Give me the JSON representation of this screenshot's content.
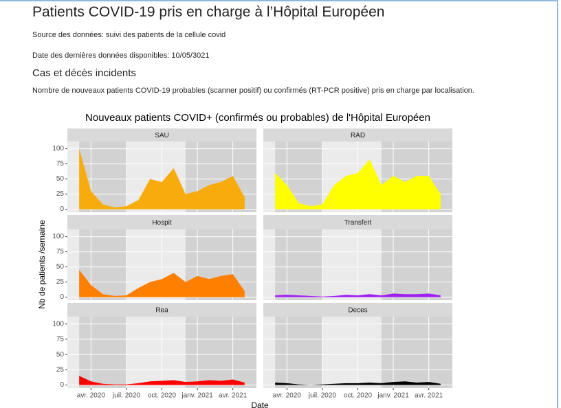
{
  "header": {
    "title": "Patients COVID-19 pris en charge à l’Hôpital Européen",
    "source": "Source des données: suivi des patients de la cellule covid",
    "date": "Date des dernières données disponibles: 10/05/3021",
    "section": "Cas et décès incidents",
    "description": "Nombre de nouveaux patients COVID-19 probables (scanner positif) ou confirmés (RT-PCR positive) pris en charge par localisation."
  },
  "chart_data": {
    "type": "area",
    "title": "Nouveaux patients COVID+ (confirmés ou probables) de l'Hôpital Européen",
    "xlabel": "Date",
    "ylabel": "Nb de patients /semaine",
    "x": [
      "2020-03",
      "2020-04",
      "2020-05",
      "2020-06",
      "2020-07",
      "2020-08",
      "2020-09",
      "2020-10",
      "2020-11",
      "2020-12",
      "2021-01",
      "2021-02",
      "2021-03",
      "2021-04",
      "2021-05"
    ],
    "xlim": [
      "2020-02",
      "2021-06"
    ],
    "xticks": [
      {
        "value": "2020-04",
        "label": "avr. 2020"
      },
      {
        "value": "2020-07",
        "label": "juil. 2020"
      },
      {
        "value": "2020-10",
        "label": "oct. 2020"
      },
      {
        "value": "2021-01",
        "label": "janv. 2021"
      },
      {
        "value": "2021-04",
        "label": "avr. 2021"
      }
    ],
    "ylim": [
      -5,
      112
    ],
    "yticks": [
      0,
      25,
      50,
      75,
      100
    ],
    "grid": true,
    "shaded_periods": [
      [
        "2020-03",
        "2020-07"
      ],
      [
        "2020-12",
        "2021-06"
      ]
    ],
    "panels": [
      {
        "name": "SAU",
        "color": "#f7ab0c",
        "values": [
          100,
          30,
          8,
          3,
          5,
          15,
          50,
          45,
          68,
          25,
          30,
          40,
          45,
          55,
          20
        ]
      },
      {
        "name": "RAD",
        "color": "#ffff00",
        "values": [
          60,
          40,
          10,
          5,
          8,
          40,
          55,
          60,
          82,
          40,
          55,
          45,
          55,
          55,
          25
        ]
      },
      {
        "name": "Hospit",
        "color": "#ff7f00",
        "values": [
          45,
          20,
          5,
          2,
          3,
          15,
          25,
          30,
          40,
          25,
          35,
          30,
          35,
          38,
          10
        ]
      },
      {
        "name": "Transfert",
        "color": "#a020f0",
        "values": [
          3,
          4,
          3,
          2,
          1,
          2,
          4,
          3,
          5,
          3,
          6,
          5,
          5,
          6,
          3
        ]
      },
      {
        "name": "Rea",
        "color": "#ff0000",
        "values": [
          15,
          6,
          2,
          1,
          1,
          3,
          6,
          7,
          8,
          5,
          6,
          8,
          7,
          9,
          4
        ]
      },
      {
        "name": "Deces",
        "color": "#000000",
        "values": [
          4,
          3,
          1,
          0,
          1,
          2,
          3,
          3,
          4,
          3,
          5,
          6,
          4,
          5,
          2
        ]
      }
    ]
  }
}
